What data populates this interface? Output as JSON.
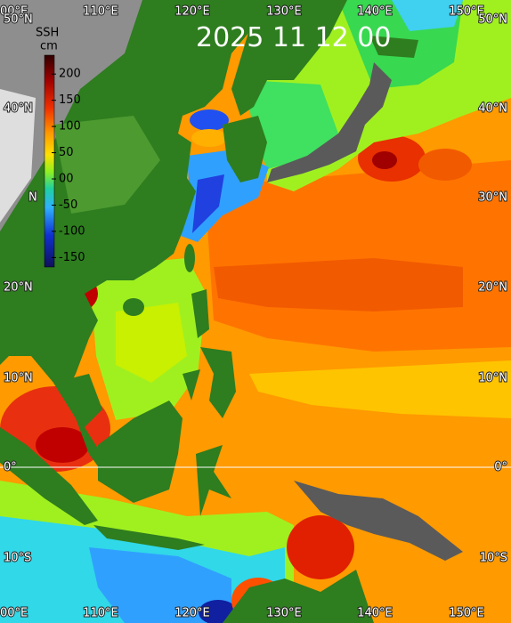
{
  "title": "2025 11 12 00",
  "colorbar": {
    "label": "SSH",
    "unit": "cm",
    "range": [
      -168,
      236
    ],
    "ticks": [
      200,
      150,
      100,
      50,
      {
        "value": 0,
        "label": "00"
      },
      -50,
      -100,
      -150
    ]
  },
  "top_lon_labels": [
    "00°E",
    "110°E",
    "120°E",
    "130°E",
    "140°E",
    "150°E"
  ],
  "bottom_lon_labels": [
    "00°E",
    "110°E",
    "120°E",
    "130°E",
    "140°E",
    "150°E"
  ],
  "left_lat_labels": [
    "50°N",
    "40°N",
    "N",
    "20°N",
    "10°N",
    "0°",
    "10°S"
  ],
  "right_lat_labels": [
    "50°N",
    "40°N",
    "30°N",
    "20°N",
    "10°N",
    "0°",
    "10°S"
  ]
}
